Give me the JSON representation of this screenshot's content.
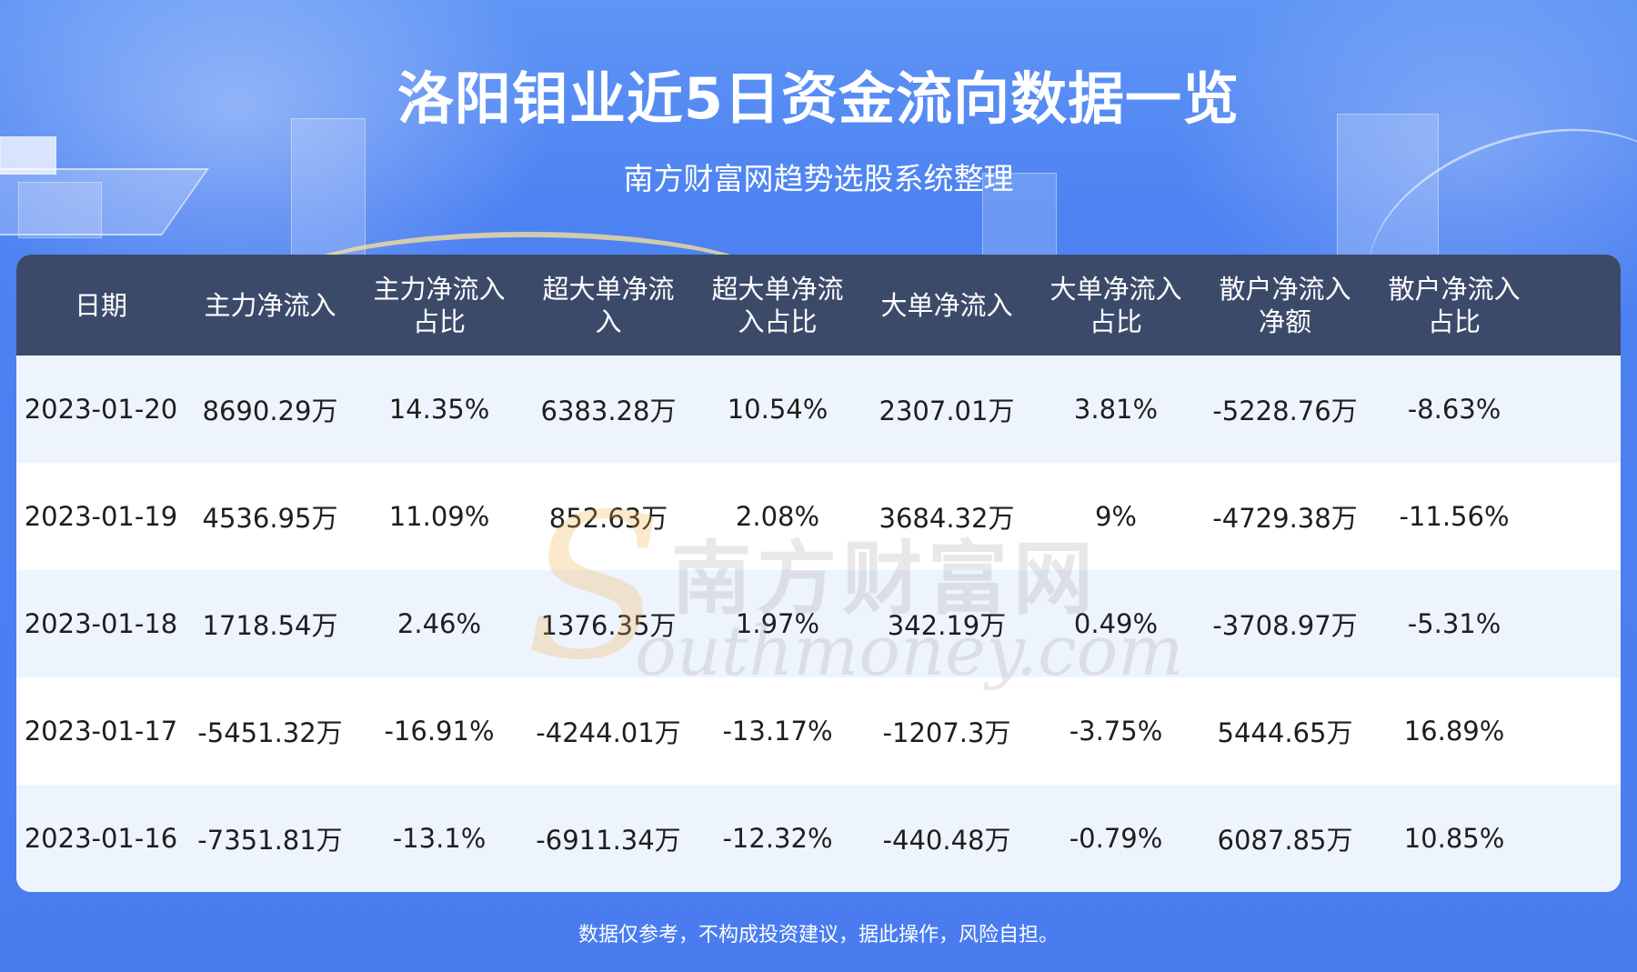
{
  "title": "洛阳钼业近5日资金流向数据一览",
  "subtitle": "南方财富网趋势选股系统整理",
  "table": {
    "headers": [
      "日期",
      "主力净流入",
      "主力净流入\n占比",
      "超大单净流\n入",
      "超大单净流\n入占比",
      "大单净流入",
      "大单净流入\n占比",
      "散户净流入\n净额",
      "散户净流入\n占比"
    ],
    "rows": [
      [
        "2023-01-20",
        "8690.29万",
        "14.35%",
        "6383.28万",
        "10.54%",
        "2307.01万",
        "3.81%",
        "-5228.76万",
        "-8.63%"
      ],
      [
        "2023-01-19",
        "4536.95万",
        "11.09%",
        "852.63万",
        "2.08%",
        "3684.32万",
        "9%",
        "-4729.38万",
        "-11.56%"
      ],
      [
        "2023-01-18",
        "1718.54万",
        "2.46%",
        "1376.35万",
        "1.97%",
        "342.19万",
        "0.49%",
        "-3708.97万",
        "-5.31%"
      ],
      [
        "2023-01-17",
        "-5451.32万",
        "-16.91%",
        "-4244.01万",
        "-13.17%",
        "-1207.3万",
        "-3.75%",
        "5444.65万",
        "16.89%"
      ],
      [
        "2023-01-16",
        "-7351.81万",
        "-13.1%",
        "-6911.34万",
        "-12.32%",
        "-440.48万",
        "-0.79%",
        "6087.85万",
        "10.85%"
      ]
    ]
  },
  "watermark": {
    "brand_cn": "南方财富网",
    "brand_en": "outhmoney.com",
    "logo_letter": "S"
  },
  "footer": "数据仅参考，不构成投资建议，据此操作，风险自担。"
}
